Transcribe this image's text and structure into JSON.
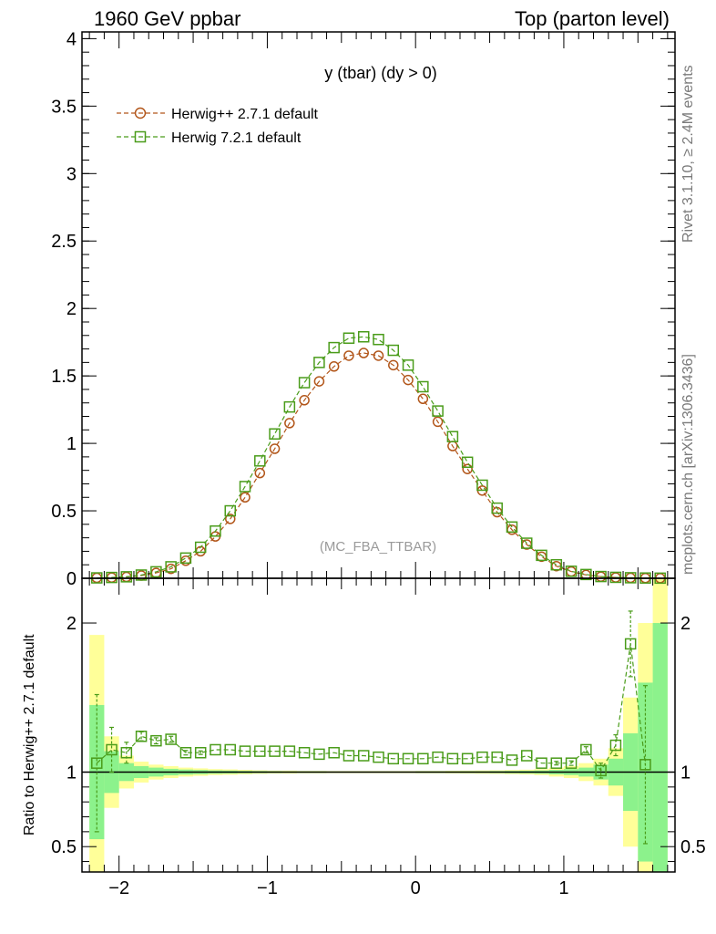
{
  "header": {
    "left": "1960 GeV ppbar",
    "right": "Top (parton level)"
  },
  "side_text": {
    "rivet": "Rivet 3.1.10, ≥ 2.4M events",
    "source": "mcplots.cern.ch [arXiv:1306.3436]"
  },
  "watermark": "(MC_FBA_TTBAR)",
  "colors": {
    "herwig_pp": "#b2561a",
    "herwig7": "#4a9c1a",
    "band_yellow": "#ffff99",
    "band_green": "#8cf28c"
  },
  "chart_data": [
    {
      "type": "line",
      "title": "y (tbar) (dy > 0)",
      "xlabel": "",
      "ylabel": "",
      "xlim": [
        -2.25,
        1.75
      ],
      "ylim": [
        0,
        4.05
      ],
      "y_ticks": [
        "0",
        "0.5",
        "1",
        "1.5",
        "2",
        "2.5",
        "3",
        "3.5",
        "4"
      ],
      "y_tick_values": [
        0,
        0.5,
        1,
        1.5,
        2,
        2.5,
        3,
        3.5,
        4
      ],
      "legend_position": "top-left",
      "x": [
        -2.15,
        -2.05,
        -1.95,
        -1.85,
        -1.75,
        -1.65,
        -1.55,
        -1.45,
        -1.35,
        -1.25,
        -1.15,
        -1.05,
        -0.95,
        -0.85,
        -0.75,
        -0.65,
        -0.55,
        -0.45,
        -0.35,
        -0.25,
        -0.15,
        -0.05,
        0.05,
        0.15,
        0.25,
        0.35,
        0.45,
        0.55,
        0.65,
        0.75,
        0.85,
        0.95,
        1.05,
        1.15,
        1.25,
        1.35,
        1.45,
        1.55,
        1.65
      ],
      "series": [
        {
          "name": "Herwig++ 2.7.1 default",
          "marker": "circle",
          "values": [
            0.003,
            0.005,
            0.01,
            0.02,
            0.04,
            0.07,
            0.13,
            0.2,
            0.31,
            0.44,
            0.6,
            0.78,
            0.96,
            1.15,
            1.32,
            1.46,
            1.57,
            1.65,
            1.67,
            1.65,
            1.58,
            1.47,
            1.33,
            1.16,
            0.98,
            0.81,
            0.65,
            0.49,
            0.36,
            0.25,
            0.16,
            0.09,
            0.05,
            0.025,
            0.012,
            0.006,
            0.003,
            0.0015,
            0.0008
          ]
        },
        {
          "name": "Herwig 7.2.1 default",
          "marker": "square",
          "values": [
            0.003,
            0.006,
            0.011,
            0.024,
            0.048,
            0.085,
            0.15,
            0.23,
            0.35,
            0.5,
            0.68,
            0.87,
            1.07,
            1.27,
            1.45,
            1.6,
            1.71,
            1.78,
            1.79,
            1.77,
            1.69,
            1.58,
            1.42,
            1.24,
            1.05,
            0.86,
            0.69,
            0.52,
            0.38,
            0.26,
            0.17,
            0.1,
            0.052,
            0.028,
            0.013,
            0.007,
            0.004,
            0.002,
            0.001
          ]
        }
      ]
    },
    {
      "type": "line",
      "title": "",
      "xlabel": "",
      "ylabel": "Ratio to Herwig++ 2.7.1 default",
      "xlim": [
        -2.25,
        1.75
      ],
      "ylim": [
        0.33,
        2.3
      ],
      "y_ticks": [
        "0.5",
        "1",
        "2"
      ],
      "y_tick_values": [
        0.5,
        1,
        2
      ],
      "x_ticks": [
        "−2",
        "−1",
        "0",
        "1"
      ],
      "x_tick_values": [
        -2,
        -1,
        0,
        1
      ],
      "reference_line": 1,
      "x": [
        -2.15,
        -2.05,
        -1.95,
        -1.85,
        -1.75,
        -1.65,
        -1.55,
        -1.45,
        -1.35,
        -1.25,
        -1.15,
        -1.05,
        -0.95,
        -0.85,
        -0.75,
        -0.65,
        -0.55,
        -0.45,
        -0.35,
        -0.25,
        -0.15,
        -0.05,
        0.05,
        0.15,
        0.25,
        0.35,
        0.45,
        0.55,
        0.65,
        0.75,
        0.85,
        0.95,
        1.05,
        1.15,
        1.25,
        1.35,
        1.45,
        1.55,
        1.65
      ],
      "band_yellow_halfwidth": [
        0.92,
        0.24,
        0.11,
        0.07,
        0.05,
        0.04,
        0.03,
        0.025,
        0.02,
        0.018,
        0.015,
        0.012,
        0.01,
        0.01,
        0.008,
        0.008,
        0.007,
        0.007,
        0.007,
        0.007,
        0.007,
        0.007,
        0.008,
        0.008,
        0.009,
        0.01,
        0.011,
        0.012,
        0.014,
        0.016,
        0.02,
        0.03,
        0.04,
        0.06,
        0.09,
        0.16,
        0.5,
        1.0,
        1.5
      ],
      "band_green_halfwidth": [
        0.45,
        0.14,
        0.06,
        0.04,
        0.03,
        0.022,
        0.017,
        0.014,
        0.011,
        0.01,
        0.008,
        0.007,
        0.006,
        0.005,
        0.005,
        0.005,
        0.004,
        0.004,
        0.004,
        0.004,
        0.004,
        0.004,
        0.005,
        0.005,
        0.005,
        0.006,
        0.006,
        0.007,
        0.008,
        0.009,
        0.011,
        0.015,
        0.02,
        0.03,
        0.05,
        0.09,
        0.26,
        0.6,
        1.0
      ],
      "series": [
        {
          "name": "Herwig 7.2.1 default",
          "marker": "square",
          "values": [
            1.06,
            1.15,
            1.13,
            1.24,
            1.21,
            1.22,
            1.13,
            1.13,
            1.15,
            1.15,
            1.14,
            1.14,
            1.14,
            1.14,
            1.13,
            1.12,
            1.13,
            1.11,
            1.11,
            1.1,
            1.09,
            1.09,
            1.09,
            1.1,
            1.09,
            1.09,
            1.1,
            1.1,
            1.08,
            1.11,
            1.06,
            1.06,
            1.06,
            1.15,
            1.01,
            1.18,
            1.86,
            1.05,
            null
          ],
          "errors": [
            0.46,
            0.15,
            0.07,
            0.03,
            0.02,
            0.02,
            0.015,
            0.012,
            0.01,
            0.01,
            0.008,
            0.008,
            0.006,
            0.006,
            0.005,
            0.005,
            0.005,
            0.005,
            0.005,
            0.005,
            0.005,
            0.005,
            0.005,
            0.005,
            0.005,
            0.005,
            0.006,
            0.006,
            0.007,
            0.008,
            0.01,
            0.012,
            0.015,
            0.02,
            0.05,
            0.07,
            0.22,
            0.53,
            0
          ]
        }
      ]
    }
  ]
}
